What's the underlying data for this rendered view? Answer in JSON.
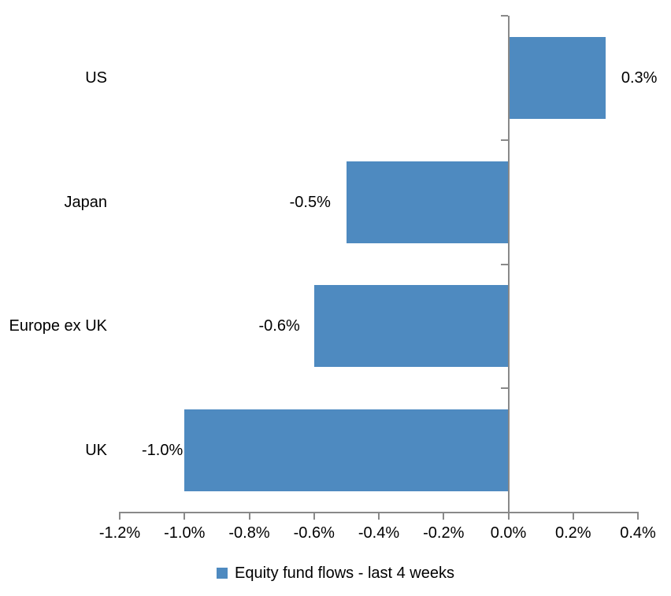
{
  "chart_data": {
    "type": "bar",
    "orientation": "horizontal",
    "title": "",
    "categories": [
      "US",
      "Japan",
      "Europe ex UK",
      "UK"
    ],
    "series": [
      {
        "name": "Equity fund flows - last 4 weeks",
        "values": [
          0.3,
          -0.5,
          -0.6,
          -1.0
        ]
      }
    ],
    "data_labels": [
      "0.3%",
      "-0.5%",
      "-0.6%",
      "-1.0%"
    ],
    "x_ticks": [
      -1.2,
      -1.0,
      -0.8,
      -0.6,
      -0.4,
      -0.2,
      0.0,
      0.2,
      0.4
    ],
    "x_tick_labels": [
      "-1.2%",
      "-1.0%",
      "-0.8%",
      "-0.6%",
      "-0.4%",
      "-0.2%",
      "0.0%",
      "0.2%",
      "0.4%"
    ],
    "xlim": [
      -1.2,
      0.4
    ],
    "unit": "%",
    "grid": false,
    "legend_position": "bottom",
    "bar_color": "#4E8AC0",
    "axis_color": "#898989",
    "text_color": "#000000"
  }
}
